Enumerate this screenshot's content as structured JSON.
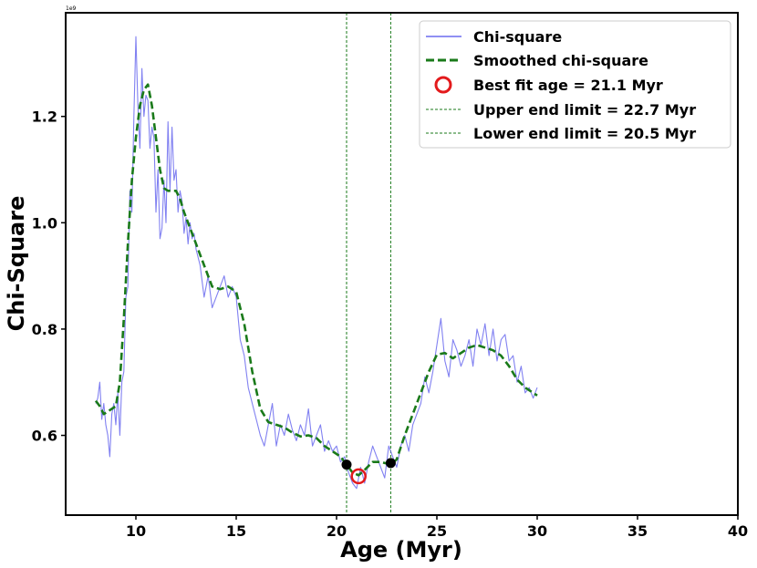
{
  "chart_data": {
    "type": "line",
    "xlabel": "Age (Myr)",
    "ylabel": "Chi-Square",
    "y_offset_text": "1e9",
    "xlim": [
      6.5,
      40
    ],
    "ylim": [
      0.45,
      1.395
    ],
    "xticks": [
      10,
      15,
      20,
      25,
      30,
      35,
      40
    ],
    "xtick_labels": [
      "10",
      "15",
      "20",
      "25",
      "30",
      "35",
      "40"
    ],
    "yticks": [
      0.6,
      0.8,
      1.0,
      1.2
    ],
    "ytick_labels": [
      "0.6",
      "0.8",
      "1.0",
      "1.2"
    ],
    "grid": false,
    "legend_position": "top-right",
    "series": [
      {
        "name": "Chi-square",
        "color": "#6b6bef",
        "style": "solid",
        "x": [
          8.0,
          8.1,
          8.2,
          8.3,
          8.4,
          8.5,
          8.6,
          8.7,
          8.8,
          8.9,
          9.0,
          9.1,
          9.2,
          9.3,
          9.4,
          9.5,
          9.6,
          9.7,
          9.8,
          9.9,
          10.0,
          10.1,
          10.2,
          10.3,
          10.4,
          10.5,
          10.6,
          10.7,
          10.8,
          10.9,
          11.0,
          11.1,
          11.2,
          11.3,
          11.4,
          11.5,
          11.6,
          11.7,
          11.8,
          11.9,
          12.0,
          12.1,
          12.2,
          12.3,
          12.4,
          12.5,
          12.6,
          12.7,
          12.8,
          12.9,
          13.0,
          13.2,
          13.4,
          13.6,
          13.8,
          14.0,
          14.2,
          14.4,
          14.6,
          14.8,
          15.0,
          15.2,
          15.4,
          15.6,
          15.8,
          16.0,
          16.2,
          16.4,
          16.6,
          16.8,
          17.0,
          17.2,
          17.4,
          17.6,
          17.8,
          18.0,
          18.2,
          18.4,
          18.6,
          18.8,
          19.0,
          19.2,
          19.4,
          19.6,
          19.8,
          20.0,
          20.2,
          20.4,
          20.6,
          20.8,
          21.0,
          21.2,
          21.4,
          21.6,
          21.8,
          22.0,
          22.2,
          22.4,
          22.6,
          22.8,
          23.0,
          23.2,
          23.4,
          23.6,
          23.8,
          24.0,
          24.2,
          24.4,
          24.6,
          24.8,
          25.0,
          25.2,
          25.4,
          25.6,
          25.8,
          26.0,
          26.2,
          26.4,
          26.6,
          26.8,
          27.0,
          27.2,
          27.4,
          27.6,
          27.8,
          28.0,
          28.2,
          28.4,
          28.6,
          28.8,
          29.0,
          29.2,
          29.4,
          29.6,
          29.8,
          30.0
        ],
        "y": [
          0.66,
          0.67,
          0.7,
          0.63,
          0.66,
          0.62,
          0.6,
          0.56,
          0.64,
          0.66,
          0.62,
          0.68,
          0.6,
          0.7,
          0.72,
          0.86,
          0.88,
          1.06,
          1.02,
          1.2,
          1.35,
          1.22,
          1.14,
          1.29,
          1.2,
          1.24,
          1.23,
          1.14,
          1.18,
          1.16,
          1.02,
          1.1,
          0.97,
          0.99,
          1.08,
          1.0,
          1.19,
          1.06,
          1.18,
          1.08,
          1.1,
          1.02,
          1.06,
          1.04,
          0.98,
          1.01,
          0.96,
          1.0,
          0.97,
          0.98,
          0.95,
          0.92,
          0.86,
          0.9,
          0.84,
          0.86,
          0.88,
          0.9,
          0.86,
          0.88,
          0.86,
          0.78,
          0.75,
          0.69,
          0.66,
          0.63,
          0.6,
          0.58,
          0.62,
          0.66,
          0.58,
          0.62,
          0.6,
          0.64,
          0.61,
          0.59,
          0.62,
          0.6,
          0.65,
          0.58,
          0.6,
          0.62,
          0.57,
          0.59,
          0.57,
          0.58,
          0.55,
          0.56,
          0.53,
          0.51,
          0.5,
          0.54,
          0.51,
          0.55,
          0.58,
          0.56,
          0.54,
          0.52,
          0.58,
          0.56,
          0.54,
          0.58,
          0.6,
          0.57,
          0.62,
          0.64,
          0.66,
          0.71,
          0.68,
          0.72,
          0.77,
          0.82,
          0.74,
          0.71,
          0.78,
          0.76,
          0.73,
          0.75,
          0.78,
          0.73,
          0.8,
          0.77,
          0.81,
          0.75,
          0.8,
          0.74,
          0.78,
          0.79,
          0.74,
          0.75,
          0.7,
          0.73,
          0.68,
          0.69,
          0.67,
          0.69
        ]
      },
      {
        "name": "Smoothed chi-square",
        "color": "#1a7a1a",
        "style": "dashed",
        "x": [
          8.0,
          8.2,
          8.4,
          8.6,
          8.8,
          9.0,
          9.2,
          9.4,
          9.6,
          9.8,
          10.0,
          10.2,
          10.4,
          10.6,
          10.8,
          11.0,
          11.2,
          11.4,
          11.6,
          11.8,
          12.0,
          12.2,
          12.4,
          12.6,
          12.8,
          13.0,
          13.4,
          13.8,
          14.2,
          14.6,
          15.0,
          15.4,
          15.8,
          16.2,
          16.6,
          17.0,
          17.4,
          17.8,
          18.2,
          18.6,
          19.0,
          19.4,
          19.8,
          20.2,
          20.5,
          20.8,
          21.1,
          21.4,
          21.8,
          22.2,
          22.7,
          23.0,
          23.4,
          23.8,
          24.2,
          24.6,
          25.0,
          25.4,
          25.8,
          26.2,
          26.6,
          27.0,
          27.4,
          27.8,
          28.2,
          28.6,
          29.0,
          29.4,
          29.8,
          30.0
        ],
        "y": [
          0.665,
          0.655,
          0.64,
          0.645,
          0.65,
          0.655,
          0.7,
          0.82,
          0.96,
          1.08,
          1.16,
          1.22,
          1.25,
          1.26,
          1.22,
          1.16,
          1.1,
          1.065,
          1.06,
          1.06,
          1.06,
          1.045,
          1.02,
          1.0,
          0.98,
          0.96,
          0.92,
          0.88,
          0.875,
          0.88,
          0.87,
          0.81,
          0.72,
          0.65,
          0.625,
          0.62,
          0.615,
          0.605,
          0.598,
          0.6,
          0.595,
          0.58,
          0.57,
          0.56,
          0.545,
          0.53,
          0.525,
          0.535,
          0.55,
          0.55,
          0.545,
          0.555,
          0.6,
          0.64,
          0.68,
          0.72,
          0.752,
          0.755,
          0.745,
          0.755,
          0.765,
          0.77,
          0.765,
          0.76,
          0.75,
          0.73,
          0.705,
          0.69,
          0.68,
          0.675
        ]
      }
    ],
    "best_fit": {
      "label": "Best fit age = 21.1 Myr",
      "x": 21.1,
      "y": 0.523,
      "color": "#e31a1c"
    },
    "limits": [
      {
        "label": "Upper end limit = 22.7 Myr",
        "x": 22.7,
        "y": 0.548,
        "color": "#1a7a1a"
      },
      {
        "label": "Lower end limit = 20.5 Myr",
        "x": 20.5,
        "y": 0.545,
        "color": "#1a7a1a"
      }
    ]
  }
}
